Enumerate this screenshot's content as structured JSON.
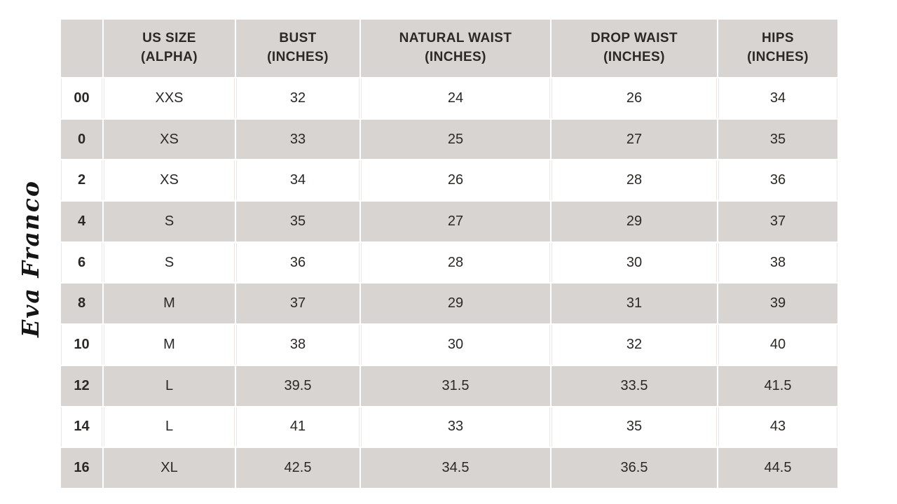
{
  "brand": {
    "signature": "Eva Franco"
  },
  "colors": {
    "background": "#ffffff",
    "stripe": "#d8d4d2",
    "divider": "#e9e6e4",
    "text": "#2b2826"
  },
  "table": {
    "columns": [
      {
        "line1": "",
        "line2": ""
      },
      {
        "line1": "US SIZE",
        "line2": "(ALPHA)"
      },
      {
        "line1": "BUST",
        "line2": "(INCHES)"
      },
      {
        "line1": "NATURAL WAIST",
        "line2": "(INCHES)"
      },
      {
        "line1": "DROP WAIST",
        "line2": "(INCHES)"
      },
      {
        "line1": "HIPS",
        "line2": "(INCHES)"
      }
    ],
    "rows": [
      [
        "00",
        "XXS",
        "32",
        "24",
        "26",
        "34"
      ],
      [
        "0",
        "XS",
        "33",
        "25",
        "27",
        "35"
      ],
      [
        "2",
        "XS",
        "34",
        "26",
        "28",
        "36"
      ],
      [
        "4",
        "S",
        "35",
        "27",
        "29",
        "37"
      ],
      [
        "6",
        "S",
        "36",
        "28",
        "30",
        "38"
      ],
      [
        "8",
        "M",
        "37",
        "29",
        "31",
        "39"
      ],
      [
        "10",
        "M",
        "38",
        "30",
        "32",
        "40"
      ],
      [
        "12",
        "L",
        "39.5",
        "31.5",
        "33.5",
        "41.5"
      ],
      [
        "14",
        "L",
        "41",
        "33",
        "35",
        "43"
      ],
      [
        "16",
        "XL",
        "42.5",
        "34.5",
        "36.5",
        "44.5"
      ]
    ]
  },
  "chart_data": {
    "type": "table",
    "title": "Eva Franco",
    "columns": [
      "",
      "US SIZE (ALPHA)",
      "BUST (INCHES)",
      "NATURAL WAIST (INCHES)",
      "DROP WAIST (INCHES)",
      "HIPS (INCHES)"
    ],
    "rows": [
      [
        "00",
        "XXS",
        "32",
        "24",
        "26",
        "34"
      ],
      [
        "0",
        "XS",
        "33",
        "25",
        "27",
        "35"
      ],
      [
        "2",
        "XS",
        "34",
        "26",
        "28",
        "36"
      ],
      [
        "4",
        "S",
        "35",
        "27",
        "29",
        "37"
      ],
      [
        "6",
        "S",
        "36",
        "28",
        "30",
        "38"
      ],
      [
        "8",
        "M",
        "37",
        "29",
        "31",
        "39"
      ],
      [
        "10",
        "M",
        "38",
        "30",
        "32",
        "40"
      ],
      [
        "12",
        "L",
        "39.5",
        "31.5",
        "33.5",
        "41.5"
      ],
      [
        "14",
        "L",
        "41",
        "33",
        "35",
        "43"
      ],
      [
        "16",
        "XL",
        "42.5",
        "34.5",
        "36.5",
        "44.5"
      ]
    ]
  }
}
